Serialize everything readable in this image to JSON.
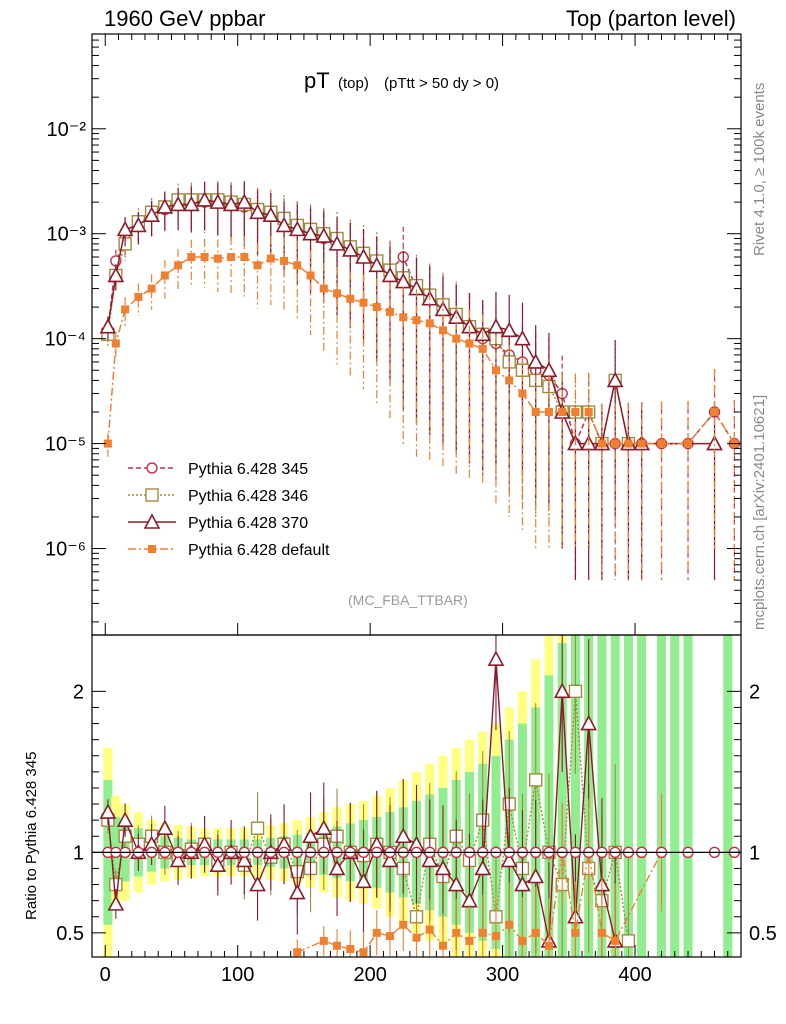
{
  "header": {
    "left": "1960 GeV ppbar",
    "right": "Top (parton level)"
  },
  "side_labels": {
    "rivet": "Rivet 4.1.0, ≥ 100k events",
    "mcplots": "mcplots.cern.ch [arXiv:2401.10621]"
  },
  "chart_data": {
    "type": "line",
    "title": "pT",
    "title_sub": "(top)",
    "title_cut": "(pTtt > 50 dy > 0)",
    "analysis_tag": "(MC_FBA_TTBAR)",
    "xlabel": "",
    "ylabel_main": "",
    "ylabel_ratio": "Ratio to Pythia 6.428 345",
    "xlim": [
      -10,
      480
    ],
    "main_ylim": [
      1.5e-07,
      0.08
    ],
    "main_yscale": "log",
    "main_yticks": [
      "10⁻⁶",
      "10⁻⁵",
      "10⁻⁴",
      "10⁻³",
      "10⁻²"
    ],
    "ratio_ylim": [
      0.35,
      2.35
    ],
    "ratio_yticks": [
      "0.5",
      "1",
      "2"
    ],
    "xticks": [
      "0",
      "100",
      "200",
      "300",
      "400"
    ],
    "legend_placement": "lower-left",
    "series": [
      {
        "name": "Pythia 6.428 345",
        "color": "#c0304a",
        "marker": "open-circle",
        "line": "dashed",
        "x": [
          2,
          8,
          15,
          25,
          35,
          45,
          55,
          65,
          75,
          85,
          95,
          105,
          115,
          125,
          135,
          145,
          155,
          165,
          175,
          185,
          195,
          205,
          215,
          225,
          235,
          245,
          255,
          265,
          275,
          285,
          295,
          305,
          315,
          325,
          335,
          345,
          355,
          365,
          375,
          385,
          395,
          405,
          420,
          440,
          460,
          475
        ],
        "y": [
          0.00012,
          0.00055,
          0.0009,
          0.0012,
          0.0015,
          0.0017,
          0.0019,
          0.002,
          0.002,
          0.002,
          0.0019,
          0.0018,
          0.0017,
          0.0015,
          0.0013,
          0.0012,
          0.00105,
          0.0009,
          0.0008,
          0.0007,
          0.0006,
          0.0005,
          0.00045,
          0.0006,
          0.0003,
          0.00025,
          0.0002,
          0.00016,
          0.00013,
          0.0001,
          9e-05,
          7e-05,
          6e-05,
          5e-05,
          4.5e-05,
          3e-05,
          1e-05,
          2e-05,
          1e-05,
          1e-05,
          1e-05,
          1e-05,
          1e-05,
          1e-05,
          2e-05,
          1e-05
        ]
      },
      {
        "name": "Pythia 6.428 346",
        "color": "#a08a40",
        "marker": "open-square",
        "line": "dotted",
        "x": [
          2,
          8,
          15,
          25,
          35,
          45,
          55,
          65,
          75,
          85,
          95,
          105,
          115,
          125,
          135,
          145,
          155,
          165,
          175,
          185,
          195,
          205,
          215,
          225,
          235,
          245,
          255,
          265,
          275,
          285,
          295,
          305,
          315,
          325,
          335,
          345,
          355,
          365,
          375,
          385,
          395
        ],
        "y": [
          0.00011,
          0.0004,
          0.0008,
          0.0013,
          0.0016,
          0.0018,
          0.0021,
          0.0021,
          0.0021,
          0.0021,
          0.002,
          0.0019,
          0.0017,
          0.0016,
          0.0014,
          0.0012,
          0.0011,
          0.001,
          0.0009,
          0.00075,
          0.00065,
          0.00055,
          0.00045,
          0.00038,
          0.00032,
          0.00026,
          0.00021,
          0.00017,
          0.00013,
          0.00011,
          0.0001,
          6e-05,
          5e-05,
          4e-05,
          3.5e-05,
          2e-05,
          2e-05,
          2e-05,
          1e-05,
          4e-05,
          1e-05
        ]
      },
      {
        "name": "Pythia 6.428 370",
        "color": "#8b1a2b",
        "marker": "open-triangle",
        "line": "solid",
        "x": [
          2,
          8,
          15,
          25,
          35,
          45,
          55,
          65,
          75,
          85,
          95,
          105,
          115,
          125,
          135,
          145,
          155,
          165,
          175,
          185,
          195,
          205,
          215,
          225,
          235,
          245,
          255,
          265,
          275,
          285,
          295,
          305,
          315,
          325,
          335,
          345,
          355,
          365,
          375,
          385,
          395,
          405,
          460
        ],
        "y": [
          0.00013,
          0.0004,
          0.0011,
          0.0012,
          0.0015,
          0.0018,
          0.0019,
          0.0019,
          0.0021,
          0.002,
          0.0019,
          0.002,
          0.0016,
          0.0015,
          0.0012,
          0.0011,
          0.001,
          0.00095,
          0.0008,
          0.0007,
          0.0006,
          0.0005,
          0.0004,
          0.00035,
          0.0003,
          0.00024,
          0.00019,
          0.00016,
          0.00013,
          0.00011,
          0.00013,
          0.00012,
          0.0001,
          6e-05,
          5e-05,
          2e-05,
          1e-05,
          1e-05,
          1e-05,
          4e-05,
          1e-05,
          1e-05,
          1e-05
        ]
      },
      {
        "name": "Pythia 6.428 default",
        "color": "#f08030",
        "marker": "filled-square",
        "line": "dash-dot",
        "x": [
          2,
          8,
          15,
          25,
          35,
          45,
          55,
          65,
          75,
          85,
          95,
          105,
          115,
          125,
          135,
          145,
          155,
          165,
          175,
          185,
          195,
          205,
          215,
          225,
          235,
          245,
          255,
          265,
          275,
          285,
          295,
          305,
          315,
          325,
          335,
          345,
          355,
          365,
          375,
          385,
          395,
          405,
          420,
          440,
          460,
          475
        ],
        "y": [
          1e-05,
          9e-05,
          0.00019,
          0.00025,
          0.0003,
          0.0004,
          0.0005,
          0.0006,
          0.0006,
          0.00058,
          0.0006,
          0.0006,
          0.0005,
          0.00058,
          0.00055,
          0.0005,
          0.0004,
          0.0003,
          0.00027,
          0.00024,
          0.00022,
          0.0002,
          0.00018,
          0.00016,
          0.00015,
          0.00014,
          0.00012,
          0.0001,
          9e-05,
          8e-05,
          5e-05,
          4e-05,
          3e-05,
          2e-05,
          2e-05,
          2e-05,
          2e-05,
          2e-05,
          1e-05,
          1e-05,
          1e-05,
          1e-05,
          1e-05,
          1e-05,
          2e-05,
          1e-05
        ]
      }
    ],
    "ratio_series": [
      {
        "name": "Pythia 6.428 346",
        "x": [
          2,
          8,
          15,
          25,
          35,
          45,
          55,
          65,
          75,
          85,
          95,
          105,
          115,
          125,
          135,
          145,
          155,
          165,
          175,
          185,
          195,
          205,
          215,
          225,
          235,
          245,
          255,
          265,
          275,
          285,
          295,
          305,
          315,
          325,
          335,
          345,
          355,
          365,
          375,
          385,
          395
        ],
        "y": [
          1.2,
          0.8,
          1.1,
          1.05,
          1.1,
          1.0,
          0.98,
          1.02,
          1.05,
          0.95,
          1.0,
          0.92,
          1.15,
          0.97,
          1.05,
          0.88,
          0.9,
          1.05,
          1.1,
          1.0,
          0.98,
          1.05,
          1.0,
          0.9,
          0.6,
          1.05,
          0.85,
          1.1,
          0.95,
          1.2,
          0.6,
          1.3,
          0.9,
          1.45,
          1.0,
          0.8,
          2.0,
          0.9,
          0.7,
          1.0,
          0.45
        ]
      },
      {
        "name": "Pythia 6.428 370",
        "x": [
          2,
          8,
          15,
          25,
          35,
          45,
          55,
          65,
          75,
          85,
          95,
          105,
          115,
          125,
          135,
          145,
          155,
          165,
          175,
          185,
          195,
          205,
          215,
          225,
          235,
          245,
          255,
          265,
          275,
          285,
          295,
          305,
          315,
          325,
          335,
          345,
          355,
          365,
          375,
          385
        ],
        "y": [
          1.25,
          0.68,
          1.2,
          1.0,
          1.05,
          1.15,
          0.95,
          1.0,
          1.05,
          0.92,
          1.0,
          0.95,
          0.8,
          1.0,
          1.05,
          0.75,
          1.1,
          1.15,
          0.9,
          1.0,
          0.82,
          1.05,
          0.95,
          1.1,
          1.05,
          0.95,
          0.9,
          0.8,
          0.7,
          0.9,
          2.2,
          0.95,
          0.8,
          0.85,
          0.45,
          2.0,
          0.6,
          1.8,
          0.8,
          0.45
        ]
      },
      {
        "name": "Pythia 6.428 default",
        "x": [
          145,
          165,
          175,
          185,
          195,
          205,
          215,
          225,
          235,
          245,
          255,
          265,
          275,
          285,
          295,
          305,
          315,
          325,
          335,
          345,
          355,
          365,
          375,
          385,
          420
        ],
        "y": [
          0.38,
          0.45,
          0.42,
          0.4,
          0.38,
          0.5,
          0.48,
          0.55,
          0.47,
          0.52,
          0.42,
          0.5,
          0.45,
          0.5,
          0.48,
          0.55,
          0.45,
          0.5,
          0.42,
          1.0,
          0.5,
          1.0,
          0.5,
          0.45,
          1.0
        ]
      }
    ],
    "ratio_bands": {
      "x": [
        2,
        8,
        15,
        25,
        35,
        45,
        55,
        65,
        75,
        85,
        95,
        105,
        115,
        125,
        135,
        145,
        155,
        165,
        175,
        185,
        195,
        205,
        215,
        225,
        235,
        245,
        255,
        265,
        275,
        285,
        295,
        305,
        315,
        325,
        335,
        345,
        355,
        365,
        375,
        385,
        395,
        405,
        420,
        430,
        440,
        470
      ],
      "yellow": [
        0.65,
        0.35,
        0.3,
        0.25,
        0.2,
        0.18,
        0.17,
        0.16,
        0.15,
        0.15,
        0.15,
        0.15,
        0.16,
        0.17,
        0.18,
        0.2,
        0.22,
        0.25,
        0.28,
        0.3,
        0.32,
        0.35,
        0.4,
        0.45,
        0.5,
        0.55,
        0.6,
        0.65,
        0.7,
        0.75,
        0.8,
        0.9,
        1.0,
        1.2,
        1.4,
        1.6,
        1.8,
        2.0,
        2.0,
        2.0,
        2.0,
        2.0,
        2.0,
        2.0,
        2.0,
        2.0
      ],
      "green": [
        0.45,
        0.22,
        0.18,
        0.15,
        0.12,
        0.1,
        0.09,
        0.08,
        0.08,
        0.08,
        0.08,
        0.08,
        0.08,
        0.09,
        0.1,
        0.11,
        0.12,
        0.14,
        0.16,
        0.18,
        0.2,
        0.22,
        0.25,
        0.28,
        0.32,
        0.36,
        0.4,
        0.45,
        0.5,
        0.55,
        0.6,
        0.7,
        0.8,
        0.9,
        1.1,
        1.3,
        1.5,
        1.7,
        1.7,
        1.7,
        1.7,
        1.7,
        1.7,
        1.7,
        1.7,
        1.7
      ]
    }
  }
}
